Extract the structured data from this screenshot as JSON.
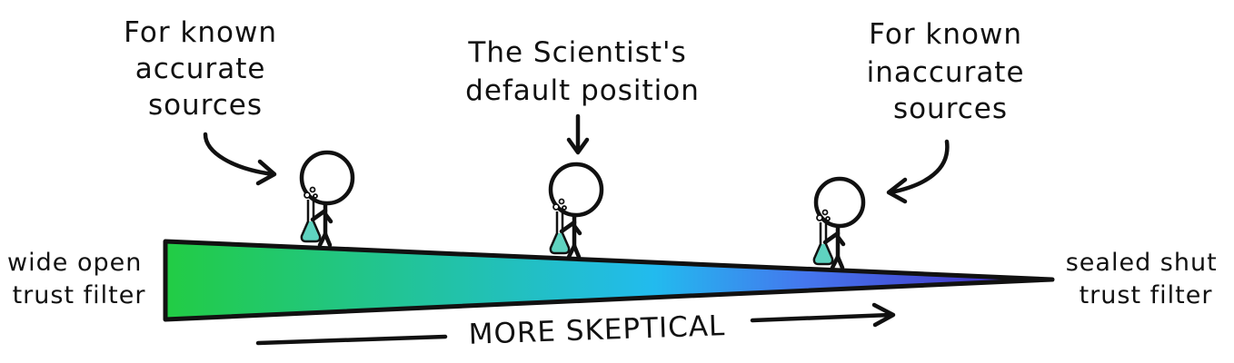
{
  "labels": {
    "left_callout": [
      "For known",
      "accurate",
      "sources"
    ],
    "center_callout": [
      "The Scientist's",
      "default position"
    ],
    "right_callout": [
      "For known",
      "inaccurate",
      "sources"
    ],
    "left_end": [
      "wide open",
      "trust filter"
    ],
    "right_end": [
      "sealed shut",
      "trust filter"
    ],
    "axis": "MORE SKEPTICAL"
  },
  "colors": {
    "gradient_start": "#22cc44",
    "gradient_mid": "#22bbee",
    "gradient_mid2": "#4477ee",
    "gradient_end": "#4422bb",
    "flask_liquid": "#5fd3c0",
    "ink": "#111111"
  },
  "figures": [
    {
      "icon": "scientist-with-flask-icon",
      "position": "accurate-sources"
    },
    {
      "icon": "scientist-with-flask-icon",
      "position": "default"
    },
    {
      "icon": "scientist-with-flask-icon",
      "position": "inaccurate-sources"
    }
  ]
}
